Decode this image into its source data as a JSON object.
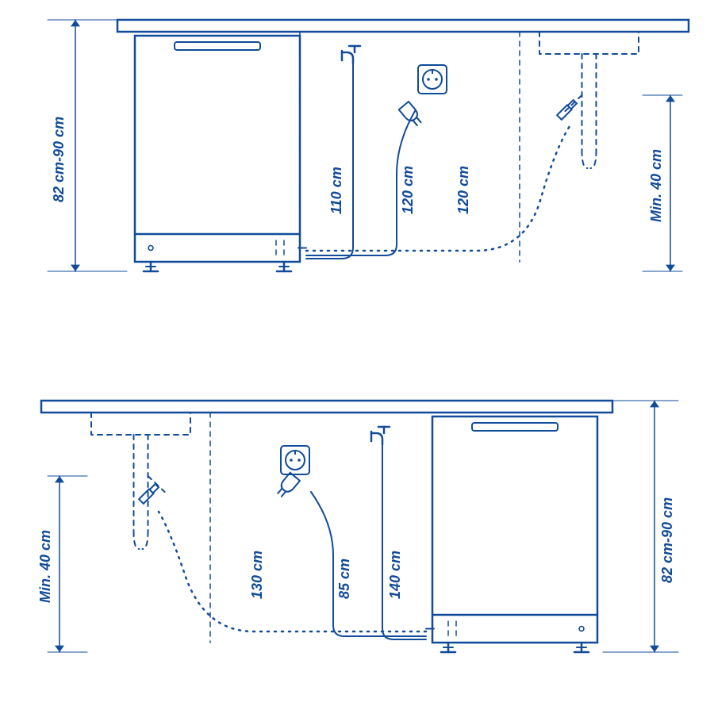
{
  "colors": {
    "line": "#114b9a",
    "text": "#114b9a",
    "bg": "#ffffff"
  },
  "stroke": {
    "main_w": 2.5,
    "thin_w": 2,
    "dash": "6 6",
    "dot": "2 7"
  },
  "font": {
    "family": "Arial, Helvetica, sans-serif",
    "size_pt": 13,
    "weight": "700",
    "style": "italic"
  },
  "top": {
    "height_label": "82 cm-90 cm",
    "min_label": "Min. 40 cm",
    "cables": {
      "water_in": "110 cm",
      "drain": "120 cm",
      "power": "120 cm"
    }
  },
  "bottom": {
    "height_label": "82 cm-90 cm",
    "min_label": "Min. 40 cm",
    "cables": {
      "drain": "130 cm",
      "power": "85 cm",
      "water_in": "140 cm"
    }
  }
}
